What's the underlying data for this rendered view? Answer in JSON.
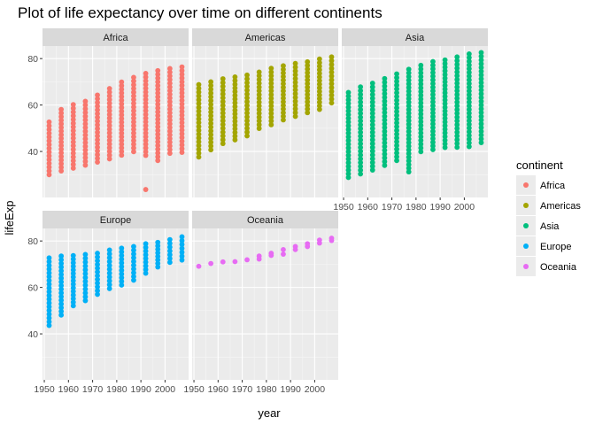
{
  "chart_data": {
    "type": "scatter",
    "title": "Plot of life expectancy over time on different continents",
    "xlabel": "year",
    "ylabel": "lifeExp",
    "xlim": [
      1949.25,
      2009.75
    ],
    "ylim": [
      20.2,
      85.4
    ],
    "x_ticks": [
      1950,
      1960,
      1970,
      1980,
      1990,
      2000
    ],
    "x_tick_labels": [
      "1950",
      "1960",
      "1970",
      "1980",
      "1990",
      "2000"
    ],
    "y_ticks": [
      40,
      60,
      80
    ],
    "y_tick_labels": [
      "40",
      "60",
      "80"
    ],
    "grid": true,
    "facet_by": "continent",
    "facets": [
      "Africa",
      "Americas",
      "Asia",
      "Europe",
      "Oceania"
    ],
    "legend": {
      "title": "continent",
      "position": "right",
      "entries": [
        {
          "name": "Africa",
          "color": "#F8766D"
        },
        {
          "name": "Americas",
          "color": "#A3A500"
        },
        {
          "name": "Asia",
          "color": "#00BF7D"
        },
        {
          "name": "Europe",
          "color": "#00B0F6"
        },
        {
          "name": "Oceania",
          "color": "#E76BF3"
        }
      ]
    },
    "series": [
      {
        "name": "Africa",
        "color": "#F8766D",
        "ranges": [
          {
            "x": 1952,
            "min": 30.0,
            "max": 52.7
          },
          {
            "x": 1957,
            "min": 31.6,
            "max": 58.1
          },
          {
            "x": 1962,
            "min": 32.8,
            "max": 60.2
          },
          {
            "x": 1967,
            "min": 34.1,
            "max": 61.6
          },
          {
            "x": 1972,
            "min": 35.4,
            "max": 64.3
          },
          {
            "x": 1977,
            "min": 36.8,
            "max": 67.1
          },
          {
            "x": 1982,
            "min": 38.4,
            "max": 69.9
          },
          {
            "x": 1987,
            "min": 39.9,
            "max": 71.9
          },
          {
            "x": 1992,
            "min": 38.3,
            "max": 73.6
          },
          {
            "x": 1997,
            "min": 36.1,
            "max": 74.8
          },
          {
            "x": 2002,
            "min": 39.2,
            "max": 75.7
          },
          {
            "x": 2007,
            "min": 39.6,
            "max": 76.4
          }
        ],
        "outliers": [
          {
            "x": 1992,
            "y": 23.6
          }
        ]
      },
      {
        "name": "Americas",
        "color": "#A3A500",
        "ranges": [
          {
            "x": 1952,
            "min": 37.6,
            "max": 68.8
          },
          {
            "x": 1957,
            "min": 40.7,
            "max": 70.0
          },
          {
            "x": 1962,
            "min": 43.4,
            "max": 71.3
          },
          {
            "x": 1967,
            "min": 45.0,
            "max": 72.1
          },
          {
            "x": 1972,
            "min": 46.7,
            "max": 72.9
          },
          {
            "x": 1977,
            "min": 49.9,
            "max": 74.2
          },
          {
            "x": 1982,
            "min": 51.5,
            "max": 75.8
          },
          {
            "x": 1987,
            "min": 53.6,
            "max": 76.9
          },
          {
            "x": 1992,
            "min": 55.1,
            "max": 77.9
          },
          {
            "x": 1997,
            "min": 56.7,
            "max": 78.6
          },
          {
            "x": 2002,
            "min": 58.1,
            "max": 79.8
          },
          {
            "x": 2007,
            "min": 60.9,
            "max": 80.7
          }
        ],
        "outliers": []
      },
      {
        "name": "Asia",
        "color": "#00BF7D",
        "ranges": [
          {
            "x": 1952,
            "min": 28.8,
            "max": 65.4
          },
          {
            "x": 1957,
            "min": 30.3,
            "max": 67.8
          },
          {
            "x": 1962,
            "min": 32.0,
            "max": 69.4
          },
          {
            "x": 1967,
            "min": 34.0,
            "max": 71.4
          },
          {
            "x": 1972,
            "min": 36.1,
            "max": 73.4
          },
          {
            "x": 1977,
            "min": 31.2,
            "max": 75.4
          },
          {
            "x": 1982,
            "min": 39.9,
            "max": 77.1
          },
          {
            "x": 1987,
            "min": 40.8,
            "max": 78.7
          },
          {
            "x": 1992,
            "min": 41.7,
            "max": 79.4
          },
          {
            "x": 1997,
            "min": 41.8,
            "max": 80.7
          },
          {
            "x": 2002,
            "min": 42.1,
            "max": 82.0
          },
          {
            "x": 2007,
            "min": 43.8,
            "max": 82.6
          }
        ],
        "outliers": []
      },
      {
        "name": "Europe",
        "color": "#00B0F6",
        "ranges": [
          {
            "x": 1952,
            "min": 43.6,
            "max": 72.7
          },
          {
            "x": 1957,
            "min": 48.1,
            "max": 73.5
          },
          {
            "x": 1962,
            "min": 52.1,
            "max": 73.7
          },
          {
            "x": 1967,
            "min": 54.3,
            "max": 74.2
          },
          {
            "x": 1972,
            "min": 57.0,
            "max": 74.7
          },
          {
            "x": 1977,
            "min": 59.5,
            "max": 76.1
          },
          {
            "x": 1982,
            "min": 61.0,
            "max": 76.9
          },
          {
            "x": 1987,
            "min": 63.1,
            "max": 77.6
          },
          {
            "x": 1992,
            "min": 66.1,
            "max": 78.8
          },
          {
            "x": 1997,
            "min": 68.8,
            "max": 79.4
          },
          {
            "x": 2002,
            "min": 70.8,
            "max": 80.6
          },
          {
            "x": 2007,
            "min": 71.8,
            "max": 81.8
          }
        ],
        "outliers": []
      },
      {
        "name": "Oceania",
        "color": "#E76BF3",
        "ranges": [
          {
            "x": 1952,
            "min": 69.1,
            "max": 69.4
          },
          {
            "x": 1957,
            "min": 70.3,
            "max": 70.3
          },
          {
            "x": 1962,
            "min": 71.0,
            "max": 71.2
          },
          {
            "x": 1967,
            "min": 71.1,
            "max": 71.5
          },
          {
            "x": 1972,
            "min": 71.9,
            "max": 71.9
          },
          {
            "x": 1977,
            "min": 72.2,
            "max": 73.5
          },
          {
            "x": 1982,
            "min": 73.8,
            "max": 74.7
          },
          {
            "x": 1987,
            "min": 74.3,
            "max": 76.3
          },
          {
            "x": 1992,
            "min": 76.3,
            "max": 77.6
          },
          {
            "x": 1997,
            "min": 77.6,
            "max": 78.8
          },
          {
            "x": 2002,
            "min": 79.1,
            "max": 80.4
          },
          {
            "x": 2007,
            "min": 80.2,
            "max": 81.2
          }
        ],
        "outliers": []
      }
    ]
  }
}
